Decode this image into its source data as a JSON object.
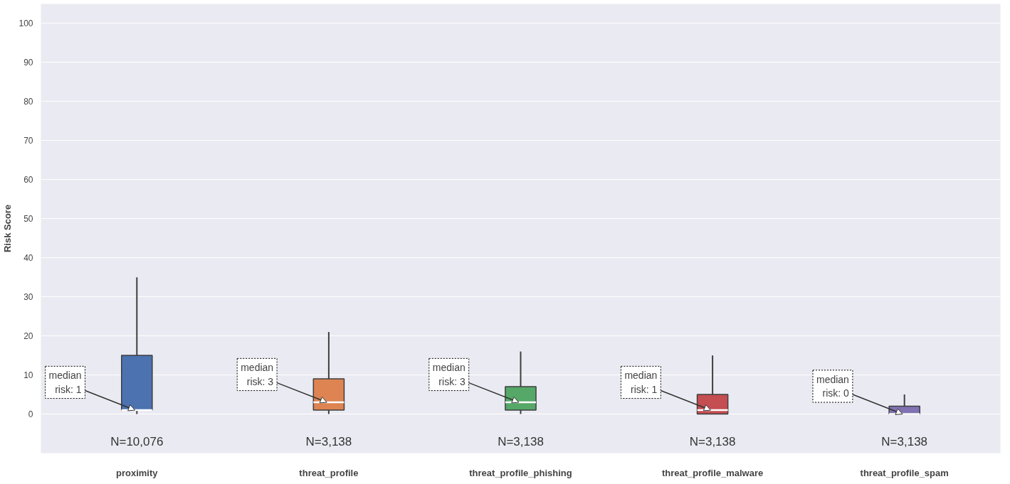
{
  "chart_data": {
    "type": "box",
    "ylabel": "Risk Score",
    "categories": [
      "proximity",
      "threat_profile",
      "threat_profile_phishing",
      "threat_profile_malware",
      "threat_profile_spam"
    ],
    "colors": [
      "#4c72b0",
      "#dd8452",
      "#55a868",
      "#c44e52",
      "#8172b3"
    ],
    "boxes": [
      {
        "low": 0,
        "q1": 1,
        "median": 1,
        "q3": 15,
        "high": 35
      },
      {
        "low": 0,
        "q1": 1,
        "median": 3,
        "q3": 9,
        "high": 21
      },
      {
        "low": 0,
        "q1": 1,
        "median": 3,
        "q3": 7,
        "high": 16
      },
      {
        "low": 0,
        "q1": 0,
        "median": 1,
        "q3": 5,
        "high": 15
      },
      {
        "low": 0,
        "q1": 0,
        "median": 0,
        "q3": 2,
        "high": 5
      }
    ],
    "ylim": [
      -10,
      105
    ],
    "yticks": [
      0,
      10,
      20,
      30,
      40,
      50,
      60,
      70,
      80,
      90,
      100
    ],
    "grid": "y",
    "annotations": [
      {
        "text": "median\nrisk: 1",
        "x": "proximity",
        "y": 1
      },
      {
        "text": "median\nrisk: 3",
        "x": "threat_profile",
        "y": 3
      },
      {
        "text": "median\nrisk: 3",
        "x": "threat_profile_phishing",
        "y": 3
      },
      {
        "text": "median\nrisk: 1",
        "x": "threat_profile_malware",
        "y": 1
      },
      {
        "text": "median\nrisk: 0",
        "x": "threat_profile_spam",
        "y": 0
      },
      "N=10,076",
      "N=3,138",
      "N=3,138",
      "N=3,138",
      "N=3,138"
    ]
  }
}
